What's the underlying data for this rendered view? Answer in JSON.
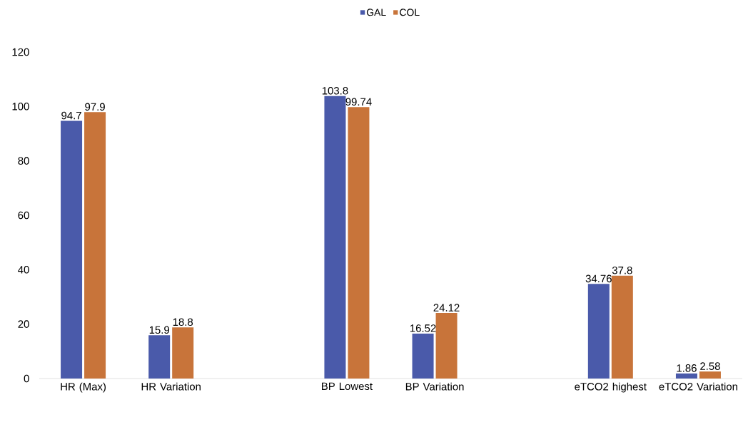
{
  "chart_data": {
    "type": "bar",
    "categories": [
      "HR (Max)",
      "HR Variation",
      null,
      "BP Lowest",
      "BP Variation",
      null,
      "eTCO2 highest",
      "eTCO2 Variation"
    ],
    "series": [
      {
        "name": "GAL",
        "color": "#4a5aaa",
        "values": [
          94.7,
          15.9,
          null,
          103.8,
          16.52,
          null,
          34.76,
          1.86
        ]
      },
      {
        "name": "COL",
        "color": "#c8743a",
        "values": [
          97.9,
          18.8,
          null,
          99.74,
          24.12,
          null,
          37.8,
          2.58
        ]
      }
    ],
    "ylim": [
      0,
      120
    ],
    "yticks": [
      0,
      20,
      40,
      60,
      80,
      100,
      120
    ],
    "data_labels": true,
    "legend": "top",
    "grid": false
  }
}
